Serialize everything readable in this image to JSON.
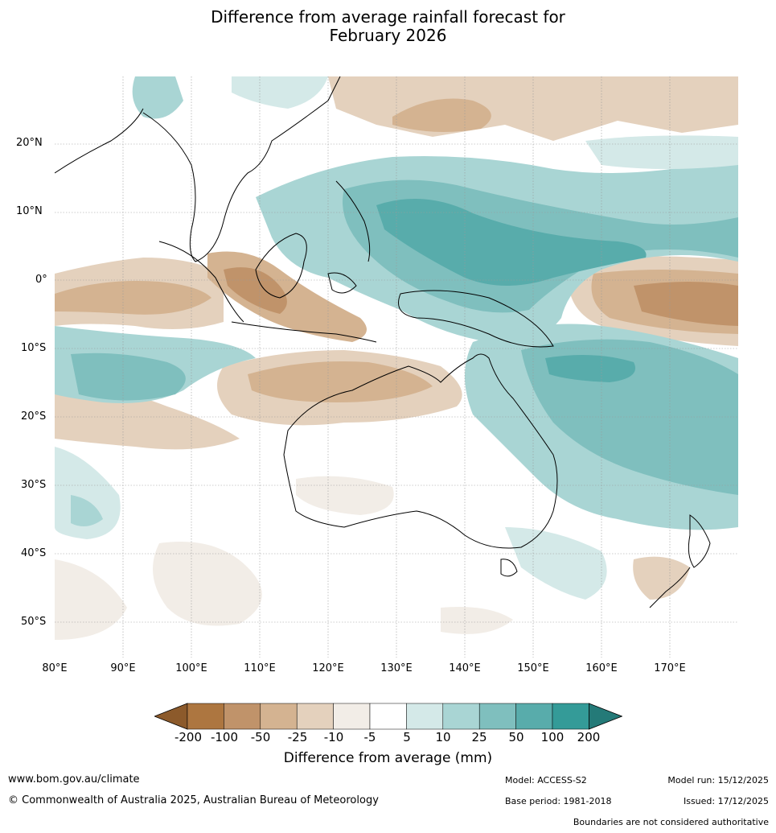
{
  "title_line1": "Difference from average rainfall forecast for",
  "title_line2": "February 2026",
  "map": {
    "lat_labels": [
      "20°N",
      "10°N",
      "0°",
      "10°S",
      "20°S",
      "30°S",
      "40°S",
      "50°S"
    ],
    "lon_labels": [
      "80°E",
      "90°E",
      "100°E",
      "110°E",
      "120°E",
      "130°E",
      "140°E",
      "150°E",
      "160°E",
      "170°E"
    ]
  },
  "colorbar": {
    "ticks": [
      "-200",
      "-100",
      "-50",
      "-25",
      "-10",
      "-5",
      "5",
      "10",
      "25",
      "50",
      "100",
      "200"
    ],
    "colors": [
      "#8c5a2b",
      "#ad7640",
      "#c0936a",
      "#d4b391",
      "#e4d1bd",
      "#f2ede7",
      "#ffffff",
      "#d4e9e8",
      "#a9d5d4",
      "#7fbfbe",
      "#58acab",
      "#349b98",
      "#247a78"
    ],
    "label": "Difference from average (mm)"
  },
  "footer": {
    "url": "www.bom.gov.au/climate",
    "copyright": "© Commonwealth of Australia 2025, Australian Bureau of Meteorology",
    "model": "Model: ACCESS-S2",
    "model_run": "Model run: 15/12/2025",
    "base_period": "Base period: 1981-2018",
    "issued": "Issued: 17/12/2025",
    "disclaimer": "Boundaries are not considered authoritative"
  }
}
